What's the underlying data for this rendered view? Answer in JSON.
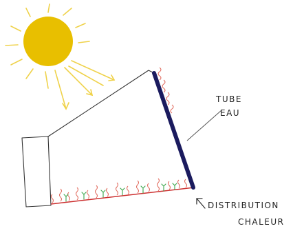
{
  "labels": {
    "tube": "TUBE",
    "water": "EAU",
    "distribution": "DISTRIBUTION",
    "heat": "CHALEUR"
  },
  "colors": {
    "sun": "#e8bf00",
    "sun_rays": "#efd24a",
    "outline": "#333333",
    "tube": "#1b1b5e",
    "heat_waves": "#e0675a",
    "floor": "#cc2f2f",
    "plants": "#3aa64a"
  },
  "icons": {
    "sun": "sun-icon",
    "arrow": "arrow-up-left-icon"
  }
}
